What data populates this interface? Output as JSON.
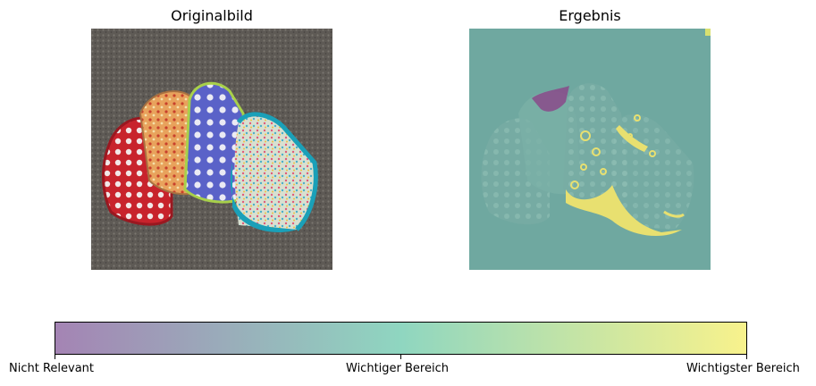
{
  "panels": {
    "left_title": "Originalbild",
    "right_title": "Ergebnis"
  },
  "colorbar": {
    "labels": [
      "Nicht Relevant",
      "Wichtiger Bereich",
      "Wichtigster Bereich"
    ],
    "colors": [
      "#a484b4",
      "#8fd6c0",
      "#f8f28c"
    ]
  },
  "image_content": {
    "subject": "four colorful baby bibs on grey carpet",
    "bib_colors": [
      "#c8232c",
      "#e8a25c",
      "#5a62c8",
      "#1aa0b8"
    ],
    "carpet_color": "#5e5a55",
    "overlay_color": "#6fa8a0",
    "highlight_color": "#e8e070",
    "low_color": "#8a4a8a"
  }
}
